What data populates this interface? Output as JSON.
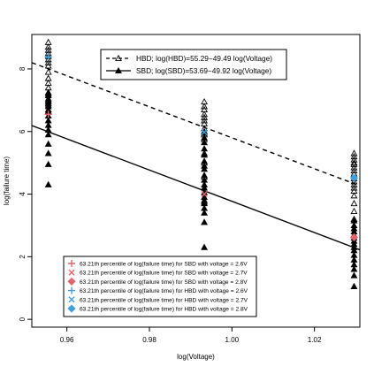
{
  "chart_data": {
    "type": "scatter",
    "title": "",
    "xlabel": "log(Voltage)",
    "ylabel": "log(failure time)",
    "xlim": [
      0.9515,
      1.031
    ],
    "ylim": [
      -0.25,
      9.1
    ],
    "x_ticks": [
      0.96,
      0.98,
      1.0,
      1.02
    ],
    "x_tick_labels": [
      "0.96",
      "0.98",
      "1.00",
      "1.02"
    ],
    "y_ticks": [
      0,
      2,
      4,
      6,
      8
    ],
    "y_tick_labels": [
      "0",
      "2",
      "4",
      "6",
      "8"
    ],
    "grid": false,
    "legend_lines": {
      "position": "top-center",
      "entries": [
        {
          "label": "HBD; log(HBD)=55.29−49.49 log(Voltage)",
          "line": "dashed",
          "marker": "open-triangle",
          "color": "#000000"
        },
        {
          "label": "SBD; log(SBD)=53.69−49.92 log(Voltage)",
          "line": "solid",
          "marker": "filled-triangle",
          "color": "#000000"
        }
      ]
    },
    "legend_percentiles": {
      "position": "bottom-center",
      "entries": [
        {
          "label": "63.21th percentile of log(failure time) for SBD with voltage = 2.6V",
          "marker": "plus",
          "color": "#e8606a"
        },
        {
          "label": "63.21th percentile of log(failure time) for SBD with voltage = 2.7V",
          "marker": "cross",
          "color": "#e8606a"
        },
        {
          "label": "63.21th percentile of log(failure time) for SBD with voltage = 2.8V",
          "marker": "diamond",
          "color": "#e8606a"
        },
        {
          "label": "63.21th percentile of log(failure time) for HBD with voltage = 2.6V",
          "marker": "plus",
          "color": "#3ba1e0"
        },
        {
          "label": "63.21th percentile of log(failure time) for HBD with voltage = 2.7V",
          "marker": "cross",
          "color": "#3ba1e0"
        },
        {
          "label": "63.21th percentile of log(failure time) for HBD with voltage = 2.8V",
          "marker": "diamond",
          "color": "#3ba1e0"
        }
      ]
    },
    "lines": [
      {
        "name": "HBD",
        "intercept": 55.29,
        "slope": -49.49,
        "style": "dashed",
        "color": "#000000"
      },
      {
        "name": "SBD",
        "intercept": 53.69,
        "slope": -49.92,
        "style": "solid",
        "color": "#000000"
      }
    ],
    "series": [
      {
        "name": "HBD",
        "marker": "open-triangle",
        "color": "#000000",
        "points": [
          {
            "x": 0.9555,
            "y": [
              8.85,
              8.7,
              8.6,
              8.5,
              8.4,
              8.3,
              8.2,
              8.1,
              7.9,
              7.7,
              7.55,
              7.4,
              7.2,
              7.0,
              6.95,
              6.85,
              6.7
            ]
          },
          {
            "x": 0.9933,
            "y": [
              6.95,
              6.8,
              6.7,
              6.55,
              6.45,
              6.35,
              6.25,
              6.1,
              6.0,
              5.9,
              5.75,
              5.3,
              5.0,
              4.55,
              3.75
            ]
          },
          {
            "x": 1.0296,
            "y": [
              5.3,
              5.2,
              5.1,
              5.0,
              4.95,
              4.85,
              4.75,
              4.65,
              4.5,
              4.4,
              4.3,
              4.2,
              4.1,
              3.95,
              3.7,
              3.45,
              3.2
            ]
          }
        ]
      },
      {
        "name": "SBD",
        "marker": "filled-triangle",
        "color": "#000000",
        "points": [
          {
            "x": 0.9555,
            "y": [
              7.25,
              7.15,
              7.05,
              6.9,
              6.8,
              6.65,
              6.5,
              6.35,
              6.2,
              6.05,
              5.9,
              5.6,
              5.3,
              4.95,
              4.3
            ]
          },
          {
            "x": 0.9933,
            "y": [
              5.95,
              5.8,
              5.65,
              5.45,
              5.25,
              5.05,
              4.9,
              4.8,
              4.6,
              4.45,
              4.3,
              4.2,
              4.05,
              3.9,
              3.8,
              3.7,
              3.55,
              3.4,
              3.1,
              2.3
            ]
          },
          {
            "x": 1.0296,
            "y": [
              3.15,
              3.0,
              2.9,
              2.8,
              2.7,
              2.6,
              2.5,
              2.4,
              2.3,
              2.2,
              2.05,
              1.9,
              1.75,
              1.6,
              1.4,
              1.05
            ]
          }
        ]
      }
    ],
    "percentile_markers": [
      {
        "group": "SBD",
        "voltage": "2.6V",
        "x": 0.9555,
        "y": 6.55,
        "marker": "plus",
        "color": "#e8606a"
      },
      {
        "group": "SBD",
        "voltage": "2.7V",
        "x": 0.9933,
        "y": 4.0,
        "marker": "cross",
        "color": "#e8606a"
      },
      {
        "group": "SBD",
        "voltage": "2.8V",
        "x": 1.0296,
        "y": 2.62,
        "marker": "diamond",
        "color": "#e8606a"
      },
      {
        "group": "HBD",
        "voltage": "2.6V",
        "x": 0.9555,
        "y": 8.38,
        "marker": "plus",
        "color": "#3ba1e0"
      },
      {
        "group": "HBD",
        "voltage": "2.7V",
        "x": 0.9933,
        "y": 5.98,
        "marker": "cross",
        "color": "#3ba1e0"
      },
      {
        "group": "HBD",
        "voltage": "2.8V",
        "x": 1.0296,
        "y": 4.52,
        "marker": "diamond",
        "color": "#3ba1e0"
      }
    ]
  }
}
